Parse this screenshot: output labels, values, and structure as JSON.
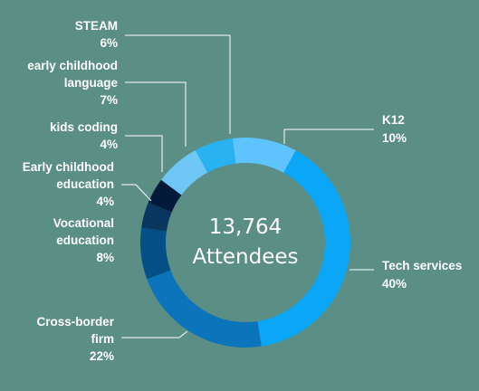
{
  "chart_data": {
    "type": "pie",
    "donut": true,
    "center_value": "13,764",
    "center_label": "Attendees",
    "slices": [
      {
        "name": "K12",
        "value": 10,
        "percent_label": "10%",
        "color": "#5ec3ff"
      },
      {
        "name": "Tech services",
        "value": 40,
        "percent_label": "40%",
        "color": "#0ba6f5"
      },
      {
        "name": "Cross-border firm",
        "value": 22,
        "percent_label": "22%",
        "color": "#0c74bb"
      },
      {
        "name": "Vocational education",
        "value": 8,
        "percent_label": "8%",
        "color": "#044f86"
      },
      {
        "name": "Early childhood education",
        "value": 4,
        "percent_label": "4%",
        "color": "#08365f"
      },
      {
        "name": "kids coding",
        "value": 4,
        "percent_label": "4%",
        "color": "#031a3a"
      },
      {
        "name": "early childhood language",
        "value": 7,
        "percent_label": "7%",
        "color": "#6ec7f5"
      },
      {
        "name": "STEAM",
        "value": 6,
        "percent_label": "6%",
        "color": "#28b2f2"
      }
    ]
  }
}
